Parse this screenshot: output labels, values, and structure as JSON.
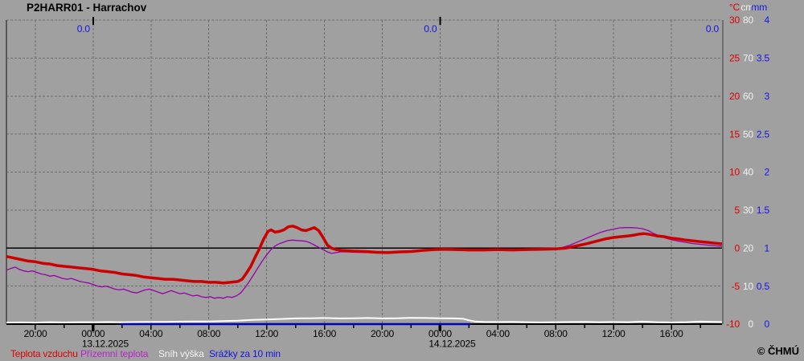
{
  "header": {
    "title": "P2HARR01 - Harrachov"
  },
  "footer": {
    "copyright": "© ČHMÚ"
  },
  "legend": {
    "items": [
      {
        "label": "Teplota vzduchu",
        "color": "#e10000"
      },
      {
        "label": "Přízemní teplota",
        "color": "#bb22cc"
      },
      {
        "label": "Sníh výška",
        "color": "#f2f2f2"
      },
      {
        "label": "Srážky za 10 min",
        "color": "#1414e6"
      }
    ]
  },
  "chart_data": {
    "type": "line",
    "title": "P2HARR01 - Harrachov",
    "station": "P2HARR01 - Harrachov",
    "background_color": "#a0a0a0",
    "grid": "dashed",
    "x_axis": {
      "unit": "hours relative to 13.12.2025 00:00",
      "range": [
        -6,
        43.5
      ],
      "label_step_hours": 4,
      "minor_tick_hours": 2,
      "tick_labels": [
        {
          "t": -4,
          "label": "20:00"
        },
        {
          "t": 0,
          "label": "00:00"
        },
        {
          "t": 4,
          "label": "04:00"
        },
        {
          "t": 8,
          "label": "08:00"
        },
        {
          "t": 12,
          "label": "12:00"
        },
        {
          "t": 16,
          "label": "16:00"
        },
        {
          "t": 20,
          "label": "20:00"
        },
        {
          "t": 24,
          "label": "00:00"
        },
        {
          "t": 28,
          "label": "04:00"
        },
        {
          "t": 32,
          "label": "08:00"
        },
        {
          "t": 36,
          "label": "12:00"
        },
        {
          "t": 40,
          "label": "16:00"
        }
      ],
      "date_labels": [
        {
          "t": 0,
          "label": "13.12.2025"
        },
        {
          "t": 24,
          "label": "14.12.2025"
        }
      ],
      "midnight_ticks": [
        0,
        24
      ]
    },
    "y_axes": [
      {
        "key": "temp",
        "unit": "°C",
        "color": "#e10000",
        "range": [
          -10,
          30
        ],
        "ticks": [
          30,
          25,
          20,
          15,
          10,
          5,
          0,
          -5,
          -10
        ],
        "zero_line": true
      },
      {
        "key": "snow",
        "unit": "cm",
        "color": "#f2f2f2",
        "range": [
          0,
          80
        ],
        "ticks": [
          80,
          70,
          60,
          50,
          40,
          30,
          20,
          10,
          0
        ]
      },
      {
        "key": "precip",
        "unit": "mm",
        "color": "#1414e6",
        "range": [
          0,
          4
        ],
        "ticks": [
          4,
          3.5,
          3,
          2.5,
          2,
          1.5,
          1,
          0.5,
          0
        ]
      }
    ],
    "annotations": {
      "precip_daily_totals": [
        {
          "t": 0,
          "label": "0.0"
        },
        {
          "t": 24,
          "label": "0.0"
        },
        {
          "t": 43.5,
          "label": "0.0"
        }
      ]
    },
    "series": [
      {
        "name": "Srážky za 10 min",
        "key": "precipitation",
        "axis": "precip",
        "color": "#0000b4",
        "width": 2.5,
        "points": [
          [
            1.9,
            0.0
          ],
          [
            26.1,
            0.0
          ]
        ]
      },
      {
        "name": "Sníh výška",
        "key": "snow-height",
        "axis": "snow",
        "color": "#ffffff",
        "width": 2,
        "points": [
          [
            -6,
            0.4
          ],
          [
            -5,
            0.45
          ],
          [
            -4,
            0.4
          ],
          [
            -3,
            0.5
          ],
          [
            -2,
            0.45
          ],
          [
            -1,
            0.5
          ],
          [
            0,
            0.5
          ],
          [
            1,
            0.55
          ],
          [
            2,
            0.5
          ],
          [
            3,
            0.55
          ],
          [
            4,
            0.6
          ],
          [
            5,
            0.6
          ],
          [
            6,
            0.65
          ],
          [
            7,
            0.7
          ],
          [
            8,
            0.7
          ],
          [
            9,
            0.8
          ],
          [
            10,
            0.9
          ],
          [
            11,
            1.1
          ],
          [
            12,
            1.2
          ],
          [
            13,
            1.35
          ],
          [
            14,
            1.5
          ],
          [
            15,
            1.55
          ],
          [
            16,
            1.6
          ],
          [
            17,
            1.5
          ],
          [
            18,
            1.55
          ],
          [
            19,
            1.6
          ],
          [
            20,
            1.5
          ],
          [
            21,
            1.55
          ],
          [
            22,
            1.65
          ],
          [
            23,
            1.6
          ],
          [
            24,
            1.55
          ],
          [
            25,
            1.5
          ],
          [
            25.6,
            1.4
          ],
          [
            26,
            1.0
          ],
          [
            26.4,
            0.7
          ],
          [
            27,
            0.6
          ],
          [
            28,
            0.55
          ],
          [
            29,
            0.6
          ],
          [
            30,
            0.5
          ],
          [
            31,
            0.45
          ],
          [
            32,
            0.5
          ],
          [
            33,
            0.55
          ],
          [
            34,
            0.6
          ],
          [
            35,
            0.5
          ],
          [
            36,
            0.55
          ],
          [
            37,
            0.5
          ],
          [
            38,
            0.65
          ],
          [
            39,
            0.5
          ],
          [
            40,
            0.45
          ],
          [
            41,
            0.5
          ],
          [
            42,
            0.65
          ],
          [
            43,
            0.6
          ],
          [
            43.5,
            0.55
          ]
        ]
      },
      {
        "name": "Přízemní teplota",
        "key": "ground-temperature",
        "axis": "temp",
        "color": "#9900aa",
        "width": 1.3,
        "points": [
          [
            -6,
            -2.9
          ],
          [
            -5.7,
            -2.7
          ],
          [
            -5.4,
            -2.5
          ],
          [
            -5.1,
            -2.8
          ],
          [
            -4.8,
            -3.0
          ],
          [
            -4.5,
            -3.1
          ],
          [
            -4.2,
            -3.0
          ],
          [
            -3.9,
            -3.2
          ],
          [
            -3.6,
            -3.4
          ],
          [
            -3.3,
            -3.5
          ],
          [
            -3,
            -3.7
          ],
          [
            -2.7,
            -3.6
          ],
          [
            -2.4,
            -3.8
          ],
          [
            -2.1,
            -4.0
          ],
          [
            -1.8,
            -4.1
          ],
          [
            -1.5,
            -4.0
          ],
          [
            -1.2,
            -4.2
          ],
          [
            -0.9,
            -4.4
          ],
          [
            -0.6,
            -4.5
          ],
          [
            -0.3,
            -4.6
          ],
          [
            0,
            -4.8
          ],
          [
            0.3,
            -5.0
          ],
          [
            0.6,
            -5.1
          ],
          [
            0.9,
            -5.0
          ],
          [
            1.2,
            -5.2
          ],
          [
            1.5,
            -5.4
          ],
          [
            1.8,
            -5.5
          ],
          [
            2.1,
            -5.4
          ],
          [
            2.4,
            -5.6
          ],
          [
            2.7,
            -5.8
          ],
          [
            3,
            -5.9
          ],
          [
            3.3,
            -5.7
          ],
          [
            3.6,
            -5.5
          ],
          [
            3.9,
            -5.4
          ],
          [
            4.2,
            -5.6
          ],
          [
            4.5,
            -5.8
          ],
          [
            4.8,
            -6.0
          ],
          [
            5.1,
            -5.8
          ],
          [
            5.4,
            -5.6
          ],
          [
            5.7,
            -5.8
          ],
          [
            6,
            -6.0
          ],
          [
            6.3,
            -5.9
          ],
          [
            6.6,
            -6.1
          ],
          [
            6.9,
            -6.3
          ],
          [
            7.2,
            -6.2
          ],
          [
            7.5,
            -6.4
          ],
          [
            7.8,
            -6.5
          ],
          [
            8.1,
            -6.4
          ],
          [
            8.4,
            -6.6
          ],
          [
            8.7,
            -6.5
          ],
          [
            9,
            -6.6
          ],
          [
            9.3,
            -6.4
          ],
          [
            9.6,
            -6.5
          ],
          [
            9.9,
            -6.3
          ],
          [
            10.2,
            -5.9
          ],
          [
            10.5,
            -5.2
          ],
          [
            10.8,
            -4.4
          ],
          [
            11.1,
            -3.5
          ],
          [
            11.4,
            -2.6
          ],
          [
            11.7,
            -1.7
          ],
          [
            12,
            -0.9
          ],
          [
            12.3,
            -0.2
          ],
          [
            12.6,
            0.3
          ],
          [
            12.9,
            0.6
          ],
          [
            13.2,
            0.8
          ],
          [
            13.5,
            1.0
          ],
          [
            13.8,
            1.05
          ],
          [
            14.1,
            1.0
          ],
          [
            14.4,
            0.95
          ],
          [
            14.7,
            0.9
          ],
          [
            15,
            0.7
          ],
          [
            15.3,
            0.4
          ],
          [
            15.6,
            0.1
          ],
          [
            15.9,
            -0.2
          ],
          [
            16.2,
            -0.5
          ],
          [
            16.5,
            -0.7
          ],
          [
            16.8,
            -0.6
          ],
          [
            17.1,
            -0.5
          ],
          [
            17.5,
            -0.5
          ],
          [
            18,
            -0.55
          ],
          [
            19,
            -0.6
          ],
          [
            20,
            -0.65
          ],
          [
            21,
            -0.6
          ],
          [
            22,
            -0.5
          ],
          [
            23,
            -0.35
          ],
          [
            24,
            -0.25
          ],
          [
            25,
            -0.3
          ],
          [
            26,
            -0.3
          ],
          [
            27,
            -0.3
          ],
          [
            28,
            -0.25
          ],
          [
            29,
            -0.3
          ],
          [
            30,
            -0.25
          ],
          [
            31,
            -0.2
          ],
          [
            32,
            -0.1
          ],
          [
            32.5,
            0.1
          ],
          [
            33,
            0.4
          ],
          [
            33.5,
            0.8
          ],
          [
            34,
            1.2
          ],
          [
            34.5,
            1.6
          ],
          [
            35,
            2.0
          ],
          [
            35.5,
            2.3
          ],
          [
            36,
            2.5
          ],
          [
            36.4,
            2.65
          ],
          [
            36.8,
            2.7
          ],
          [
            37.2,
            2.7
          ],
          [
            37.6,
            2.65
          ],
          [
            38,
            2.55
          ],
          [
            38.4,
            2.3
          ],
          [
            38.8,
            1.9
          ],
          [
            39.2,
            1.6
          ],
          [
            39.6,
            1.3
          ],
          [
            40,
            1.1
          ],
          [
            40.5,
            0.9
          ],
          [
            41,
            0.75
          ],
          [
            41.5,
            0.6
          ],
          [
            42,
            0.5
          ],
          [
            42.5,
            0.4
          ],
          [
            43,
            0.3
          ],
          [
            43.5,
            0.25
          ]
        ]
      },
      {
        "name": "Teplota vzduchu",
        "key": "air-temperature",
        "axis": "temp",
        "color": "#cc0000",
        "width": 3.5,
        "points": [
          [
            -6,
            -1.1
          ],
          [
            -5.5,
            -1.3
          ],
          [
            -5,
            -1.5
          ],
          [
            -4.5,
            -1.7
          ],
          [
            -4,
            -1.8
          ],
          [
            -3.5,
            -2.0
          ],
          [
            -3,
            -2.1
          ],
          [
            -2.5,
            -2.3
          ],
          [
            -2,
            -2.4
          ],
          [
            -1.5,
            -2.5
          ],
          [
            -1,
            -2.6
          ],
          [
            -0.5,
            -2.7
          ],
          [
            0,
            -2.8
          ],
          [
            0.5,
            -3.0
          ],
          [
            1,
            -3.1
          ],
          [
            1.5,
            -3.2
          ],
          [
            2,
            -3.4
          ],
          [
            2.5,
            -3.5
          ],
          [
            3,
            -3.6
          ],
          [
            3.5,
            -3.8
          ],
          [
            4,
            -3.9
          ],
          [
            4.5,
            -4.0
          ],
          [
            5,
            -4.1
          ],
          [
            5.5,
            -4.1
          ],
          [
            6,
            -4.2
          ],
          [
            6.5,
            -4.3
          ],
          [
            7,
            -4.4
          ],
          [
            7.5,
            -4.4
          ],
          [
            8,
            -4.5
          ],
          [
            8.5,
            -4.5
          ],
          [
            9,
            -4.6
          ],
          [
            9.5,
            -4.5
          ],
          [
            10,
            -4.4
          ],
          [
            10.3,
            -4.1
          ],
          [
            10.6,
            -3.3
          ],
          [
            10.9,
            -2.4
          ],
          [
            11.2,
            -1.2
          ],
          [
            11.5,
            -0.1
          ],
          [
            11.8,
            1.2
          ],
          [
            12.1,
            2.2
          ],
          [
            12.3,
            2.4
          ],
          [
            12.6,
            2.1
          ],
          [
            12.9,
            2.2
          ],
          [
            13.2,
            2.4
          ],
          [
            13.5,
            2.8
          ],
          [
            13.8,
            2.9
          ],
          [
            14.1,
            2.7
          ],
          [
            14.4,
            2.4
          ],
          [
            14.7,
            2.3
          ],
          [
            15,
            2.5
          ],
          [
            15.3,
            2.7
          ],
          [
            15.6,
            2.3
          ],
          [
            15.9,
            1.4
          ],
          [
            16.2,
            0.4
          ],
          [
            16.5,
            0.0
          ],
          [
            16.8,
            -0.2
          ],
          [
            17.2,
            -0.3
          ],
          [
            18,
            -0.4
          ],
          [
            18.8,
            -0.45
          ],
          [
            19.6,
            -0.55
          ],
          [
            20.4,
            -0.6
          ],
          [
            21.2,
            -0.5
          ],
          [
            22,
            -0.45
          ],
          [
            22.8,
            -0.3
          ],
          [
            23.6,
            -0.2
          ],
          [
            24.4,
            -0.15
          ],
          [
            25.2,
            -0.2
          ],
          [
            26,
            -0.25
          ],
          [
            27,
            -0.25
          ],
          [
            28,
            -0.2
          ],
          [
            29,
            -0.25
          ],
          [
            30,
            -0.2
          ],
          [
            31,
            -0.15
          ],
          [
            32,
            -0.1
          ],
          [
            32.7,
            0.0
          ],
          [
            33.2,
            0.2
          ],
          [
            33.7,
            0.4
          ],
          [
            34.2,
            0.6
          ],
          [
            34.8,
            0.9
          ],
          [
            35.4,
            1.2
          ],
          [
            36,
            1.4
          ],
          [
            36.5,
            1.5
          ],
          [
            37,
            1.6
          ],
          [
            37.4,
            1.7
          ],
          [
            37.8,
            1.85
          ],
          [
            38.1,
            1.9
          ],
          [
            38.5,
            1.8
          ],
          [
            39,
            1.6
          ],
          [
            39.5,
            1.5
          ],
          [
            40,
            1.3
          ],
          [
            40.5,
            1.2
          ],
          [
            41,
            1.05
          ],
          [
            41.5,
            0.95
          ],
          [
            42,
            0.85
          ],
          [
            42.5,
            0.75
          ],
          [
            43,
            0.65
          ],
          [
            43.5,
            0.55
          ]
        ]
      }
    ]
  }
}
